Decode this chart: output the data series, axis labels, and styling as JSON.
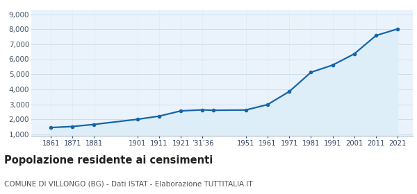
{
  "years": [
    1861,
    1871,
    1881,
    1901,
    1911,
    1921,
    1931,
    1936,
    1951,
    1961,
    1971,
    1981,
    1991,
    2001,
    2011,
    2021
  ],
  "population": [
    1450,
    1520,
    1660,
    2000,
    2210,
    2560,
    2630,
    2600,
    2620,
    2980,
    3850,
    5130,
    5610,
    6360,
    7580,
    8020
  ],
  "y_ticks": [
    1000,
    2000,
    3000,
    4000,
    5000,
    6000,
    7000,
    8000,
    9000
  ],
  "ylim": [
    900,
    9300
  ],
  "xlim_left": 1852,
  "xlim_right": 2028,
  "line_color": "#1565a8",
  "fill_color": "#ddeef8",
  "marker_color": "#1565a8",
  "bg_color": "#eaf3fb",
  "plot_bg": "#ffffff",
  "grid_color": "#c8dae8",
  "title": "Popolazione residente ai censimenti",
  "subtitle": "COMUNE DI VILLONGO (BG) - Dati ISTAT - Elaborazione TUTTITALIA.IT",
  "title_fontsize": 10.5,
  "subtitle_fontsize": 7.5,
  "x_tick_positions": [
    1861,
    1871,
    1881,
    1901,
    1911,
    1921,
    1931,
    1951,
    1961,
    1971,
    1981,
    1991,
    2001,
    2011,
    2021
  ],
  "x_tick_labels": [
    "1861",
    "1871",
    "1881",
    "1901",
    "1911",
    "1921",
    "’31’36",
    "1951",
    "1961",
    "1971",
    "1981",
    "1991",
    "2001",
    "2011",
    "2021"
  ]
}
